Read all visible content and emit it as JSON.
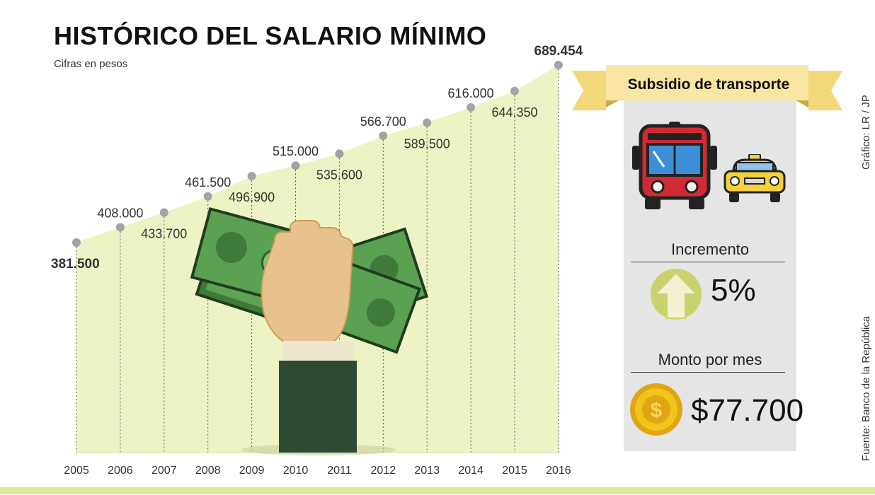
{
  "header": {
    "title": "HISTÓRICO DEL SALARIO MÍNIMO",
    "subtitle": "Cifras en pesos"
  },
  "chart_data": {
    "type": "area",
    "title": "HISTÓRICO DEL SALARIO MÍNIMO",
    "subtitle": "Cifras en pesos",
    "categories": [
      "2005",
      "2006",
      "2007",
      "2008",
      "2009",
      "2010",
      "2011",
      "2012",
      "2013",
      "2014",
      "2015",
      "2016"
    ],
    "series": [
      {
        "values": [
          381500,
          408000,
          433700,
          461500,
          496900,
          515000,
          535600,
          566700,
          589500,
          616000,
          644350,
          689454
        ],
        "value_labels": [
          "381.500",
          "408.000",
          "433.700",
          "461.500",
          "496.900",
          "515.000",
          "535.600",
          "566.700",
          "589.500",
          "616.000",
          "644.350",
          "689.454"
        ]
      }
    ],
    "ylim": [
      0,
      689454
    ],
    "grid": false,
    "fill_color": "#eef3c6",
    "point_color": "#a3a3a3"
  },
  "panel": {
    "ribbon_label": "Subsidio de transporte",
    "increment_label": "Incremento",
    "increment_value": "5%",
    "amount_label": "Monto por mes",
    "amount_value": "$77.700",
    "icons": [
      "bus-icon",
      "taxi-icon",
      "up-arrow-icon",
      "coin-icon"
    ]
  },
  "credits": {
    "graphic": "Gráfico: LR / JP",
    "source": "Fuente: Banco de la República"
  },
  "colors": {
    "accent_green": "#dfe79a",
    "ribbon": "#f6e39a",
    "bus_red": "#d02b34",
    "taxi_yellow": "#f4d13c",
    "arrow_green": "#c9d26e",
    "coin_gold": "#f0c419",
    "money_green": "#4f9a47",
    "sleeve": "#2e4a33",
    "skin": "#e8c28d"
  }
}
